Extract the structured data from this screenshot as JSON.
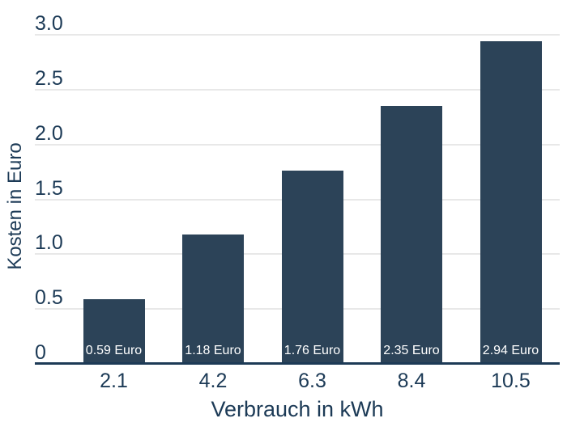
{
  "chart_data": {
    "type": "bar",
    "title": "",
    "categories": [
      "2.1",
      "4.2",
      "6.3",
      "8.4",
      "10.5"
    ],
    "values": [
      0.59,
      1.18,
      1.76,
      2.35,
      2.94
    ],
    "bar_labels": [
      "0.59 Euro",
      "1.18 Euro",
      "1.76 Euro",
      "2.35 Euro",
      "2.94 Euro"
    ],
    "xlabel": "Verbrauch in kWh",
    "ylabel": "Kosten in Euro",
    "ylim": [
      0,
      3.0
    ],
    "yticks": [
      0,
      0.5,
      1.0,
      1.5,
      2.0,
      2.5,
      3.0
    ],
    "ytick_labels": [
      "0",
      "0.5",
      "1.0",
      "1.5",
      "2.0",
      "2.5",
      "3.0"
    ],
    "grid": "horizontal",
    "legend": "none",
    "colors": {
      "bar": "#2c4358",
      "axis_line": "#1d3a56",
      "gridline": "#e8e8e8",
      "tick_text": "#1c3a56",
      "bar_label_text": "#ffffff",
      "background": "#ffffff"
    }
  }
}
